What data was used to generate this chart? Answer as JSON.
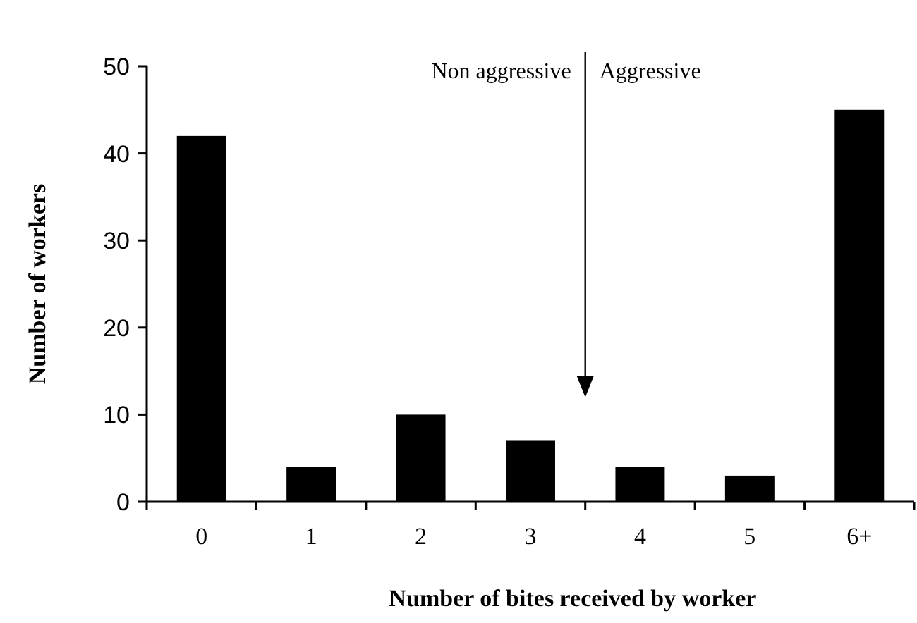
{
  "chart_data": {
    "type": "bar",
    "xlabel": "Number of bites received by worker",
    "ylabel": "Number of workers",
    "categories": [
      "0",
      "1",
      "2",
      "3",
      "4",
      "5",
      "6+"
    ],
    "values": [
      42,
      4,
      10,
      7,
      4,
      3,
      45
    ],
    "color": "#000000",
    "ylim": [
      0,
      50
    ],
    "yticks": [
      0,
      10,
      20,
      30,
      40,
      50
    ],
    "grid": false,
    "annotations": [
      "Non aggressive",
      "Aggressive"
    ]
  }
}
